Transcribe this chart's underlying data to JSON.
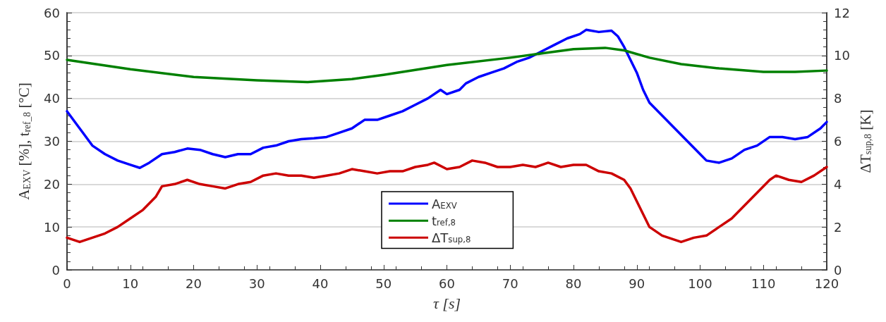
{
  "chart_data": {
    "type": "line",
    "xlabel": "τ [s]",
    "ylabel": "A$_{EXV}$ [%], t$_{ref_8}$ [°C]",
    "y2label": "ΔT$_{sup,8}$ [K]",
    "xlim": [
      0,
      120
    ],
    "xticks": [
      0,
      10,
      20,
      30,
      40,
      50,
      60,
      70,
      80,
      90,
      100,
      110,
      120
    ],
    "ylim": [
      0,
      60
    ],
    "yticks": [
      0,
      10,
      20,
      30,
      40,
      50,
      60
    ],
    "y2lim": [
      0,
      12
    ],
    "y2ticks": [
      0,
      2,
      4,
      6,
      8,
      10,
      12
    ],
    "grid": "y",
    "legend": "bottom",
    "marker": "none",
    "line_style": "solid",
    "series": [
      {
        "name": "A$_{EXV}$",
        "color": "#0000ff",
        "x": [
          0,
          2,
          4,
          6,
          8,
          10,
          11.5,
          13,
          15,
          17,
          19,
          21,
          23,
          25,
          27,
          29,
          31,
          33,
          35,
          37,
          39,
          41,
          43,
          45,
          47,
          49,
          51,
          53,
          55,
          57,
          59,
          60,
          62,
          63,
          65,
          67,
          69,
          71,
          73,
          75,
          77,
          79,
          81,
          82,
          84,
          86,
          87,
          88,
          89,
          90,
          91,
          92,
          94,
          96,
          98,
          100,
          101,
          103,
          105,
          107,
          109,
          111,
          113,
          115,
          117,
          119,
          120
        ],
        "values": [
          37,
          33,
          29,
          27,
          25.5,
          24.5,
          23.8,
          25,
          27,
          27.5,
          28.3,
          28,
          27,
          26.3,
          27,
          27,
          28.5,
          29,
          30,
          30.5,
          30.7,
          31,
          32,
          33,
          35,
          35,
          36,
          37,
          38.5,
          40,
          42,
          41,
          42,
          43.5,
          45,
          46,
          47,
          48.5,
          49.5,
          51,
          52.5,
          54,
          55,
          56,
          55.5,
          55.8,
          54.5,
          52,
          49,
          46,
          42,
          39,
          36,
          33,
          30,
          27,
          25.5,
          25,
          26,
          28,
          29,
          31,
          31,
          30.5,
          31,
          33,
          34.5
        ]
      },
      {
        "name": "t$_{ref,8}$",
        "color": "#008000",
        "x": [
          0,
          10,
          20,
          30,
          38,
          45,
          50,
          60,
          70,
          75,
          80,
          85,
          88,
          92,
          97,
          103,
          110,
          115,
          120
        ],
        "values": [
          49,
          46.8,
          45,
          44.2,
          43.8,
          44.5,
          45.5,
          47.8,
          49.5,
          50.5,
          51.5,
          51.8,
          51.2,
          49.5,
          48,
          47,
          46.2,
          46.2,
          46.5
        ]
      },
      {
        "name": "ΔT$_{sup,8}$",
        "color": "#cc0000",
        "axis": "y2",
        "x": [
          0,
          2,
          4,
          6,
          8,
          10,
          12,
          14,
          15,
          17,
          19,
          21,
          23,
          25,
          27,
          29,
          31,
          33,
          35,
          37,
          39,
          41,
          43,
          45,
          47,
          49,
          51,
          53,
          55,
          57,
          58,
          60,
          62,
          64,
          66,
          68,
          70,
          72,
          74,
          76,
          78,
          80,
          82,
          84,
          86,
          88,
          89,
          90,
          91,
          92,
          94,
          96,
          97,
          99,
          101,
          103,
          105,
          107,
          109,
          111,
          112,
          114,
          116,
          118,
          120
        ],
        "values": [
          1.5,
          1.3,
          1.5,
          1.7,
          2,
          2.4,
          2.8,
          3.4,
          3.9,
          4,
          4.2,
          4,
          3.9,
          3.8,
          4,
          4.1,
          4.4,
          4.5,
          4.4,
          4.4,
          4.3,
          4.4,
          4.5,
          4.7,
          4.6,
          4.5,
          4.6,
          4.6,
          4.8,
          4.9,
          5,
          4.7,
          4.8,
          5.1,
          5,
          4.8,
          4.8,
          4.9,
          4.8,
          5,
          4.8,
          4.9,
          4.9,
          4.6,
          4.5,
          4.2,
          3.8,
          3.2,
          2.6,
          2,
          1.6,
          1.4,
          1.3,
          1.5,
          1.6,
          2,
          2.4,
          3,
          3.6,
          4.2,
          4.4,
          4.2,
          4.1,
          4.4,
          4.8
        ]
      }
    ]
  }
}
